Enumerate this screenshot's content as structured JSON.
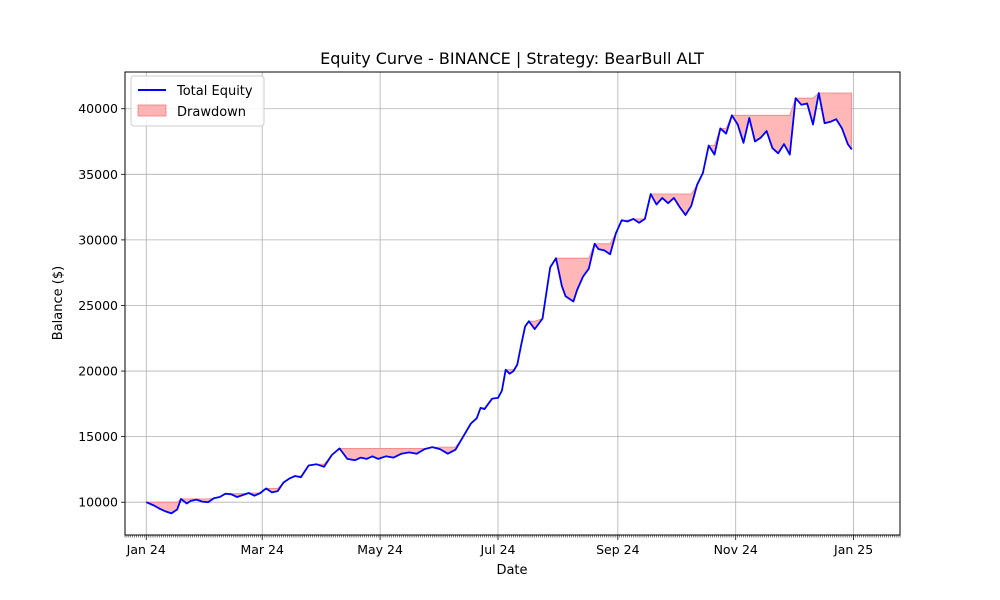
{
  "chart_data": {
    "type": "line",
    "title": "Equity Curve - BINANCE | Strategy: BearBull ALT",
    "xlabel": "Date",
    "ylabel": "Balance ($)",
    "ylim": [
      7500,
      42800
    ],
    "xlim": [
      "2023-12-21",
      "2025-01-25"
    ],
    "grid": true,
    "legend_position": "top-left",
    "y_ticks": [
      10000,
      15000,
      20000,
      25000,
      30000,
      35000,
      40000
    ],
    "x_ticks": [
      {
        "date": "2024-01-01",
        "label": "Jan 24"
      },
      {
        "date": "2024-03-01",
        "label": "Mar 24"
      },
      {
        "date": "2024-05-01",
        "label": "May 24"
      },
      {
        "date": "2024-07-01",
        "label": "Jul 24"
      },
      {
        "date": "2024-09-01",
        "label": "Sep 24"
      },
      {
        "date": "2024-11-01",
        "label": "Nov 24"
      },
      {
        "date": "2025-01-01",
        "label": "Jan 25"
      }
    ],
    "colors": {
      "equity": "#0000ff",
      "drawdown_fill": "#ffb3b3",
      "drawdown_edge": "#f08080",
      "grid": "#b0b0b0"
    },
    "series": [
      {
        "name": "Total Equity",
        "x": [
          "2024-01-01",
          "2024-01-05",
          "2024-01-08",
          "2024-01-11",
          "2024-01-14",
          "2024-01-17",
          "2024-01-19",
          "2024-01-22",
          "2024-01-24",
          "2024-01-27",
          "2024-01-30",
          "2024-02-02",
          "2024-02-05",
          "2024-02-08",
          "2024-02-11",
          "2024-02-14",
          "2024-02-17",
          "2024-02-20",
          "2024-02-23",
          "2024-02-26",
          "2024-02-29",
          "2024-03-03",
          "2024-03-06",
          "2024-03-09",
          "2024-03-12",
          "2024-03-15",
          "2024-03-18",
          "2024-03-21",
          "2024-03-25",
          "2024-03-29",
          "2024-04-02",
          "2024-04-06",
          "2024-04-10",
          "2024-04-14",
          "2024-04-18",
          "2024-04-21",
          "2024-04-24",
          "2024-04-27",
          "2024-04-30",
          "2024-05-04",
          "2024-05-08",
          "2024-05-12",
          "2024-05-16",
          "2024-05-20",
          "2024-05-24",
          "2024-05-28",
          "2024-06-01",
          "2024-06-05",
          "2024-06-09",
          "2024-06-13",
          "2024-06-17",
          "2024-06-20",
          "2024-06-22",
          "2024-06-24",
          "2024-06-26",
          "2024-06-28",
          "2024-07-01",
          "2024-07-03",
          "2024-07-05",
          "2024-07-07",
          "2024-07-09",
          "2024-07-11",
          "2024-07-13",
          "2024-07-15",
          "2024-07-17",
          "2024-07-20",
          "2024-07-24",
          "2024-07-28",
          "2024-07-31",
          "2024-08-03",
          "2024-08-05",
          "2024-08-07",
          "2024-08-09",
          "2024-08-11",
          "2024-08-14",
          "2024-08-17",
          "2024-08-20",
          "2024-08-22",
          "2024-08-25",
          "2024-08-28",
          "2024-08-31",
          "2024-09-03",
          "2024-09-06",
          "2024-09-09",
          "2024-09-12",
          "2024-09-15",
          "2024-09-18",
          "2024-09-21",
          "2024-09-24",
          "2024-09-27",
          "2024-09-30",
          "2024-10-03",
          "2024-10-06",
          "2024-10-09",
          "2024-10-12",
          "2024-10-15",
          "2024-10-18",
          "2024-10-21",
          "2024-10-24",
          "2024-10-27",
          "2024-10-30",
          "2024-11-02",
          "2024-11-05",
          "2024-11-08",
          "2024-11-11",
          "2024-11-14",
          "2024-11-17",
          "2024-11-20",
          "2024-11-23",
          "2024-11-26",
          "2024-11-29",
          "2024-12-02",
          "2024-12-05",
          "2024-12-08",
          "2024-12-11",
          "2024-12-14",
          "2024-12-17",
          "2024-12-20",
          "2024-12-23",
          "2024-12-26",
          "2024-12-29",
          "2024-12-31"
        ],
        "values": [
          10000,
          9750,
          9500,
          9300,
          9150,
          9450,
          10250,
          9900,
          10100,
          10200,
          10050,
          10000,
          10300,
          10400,
          10650,
          10600,
          10400,
          10550,
          10700,
          10500,
          10700,
          11050,
          10750,
          10850,
          11500,
          11800,
          12000,
          11900,
          12800,
          12900,
          12700,
          13600,
          14100,
          13300,
          13200,
          13400,
          13300,
          13500,
          13300,
          13500,
          13400,
          13700,
          13800,
          13700,
          14050,
          14200,
          14050,
          13700,
          14000,
          15000,
          16000,
          16400,
          17200,
          17100,
          17500,
          17900,
          17950,
          18500,
          20100,
          19800,
          20000,
          20500,
          22000,
          23400,
          23800,
          23200,
          24000,
          27900,
          28600,
          26500,
          25700,
          25500,
          25300,
          26200,
          27200,
          27800,
          29700,
          29300,
          29200,
          28900,
          30500,
          31500,
          31400,
          31600,
          31300,
          31600,
          33500,
          32700,
          33200,
          32800,
          33200,
          32500,
          31900,
          32600,
          34200,
          35100,
          37200,
          36500,
          38500,
          38100,
          39500,
          38800,
          37400,
          39300,
          37500,
          37800,
          38300,
          37000,
          36600,
          37300,
          36500,
          40800,
          40300,
          40400,
          38800,
          41200,
          38900,
          39000,
          39200,
          38500,
          37300,
          36900
        ]
      },
      {
        "name": "Drawdown"
      }
    ]
  }
}
